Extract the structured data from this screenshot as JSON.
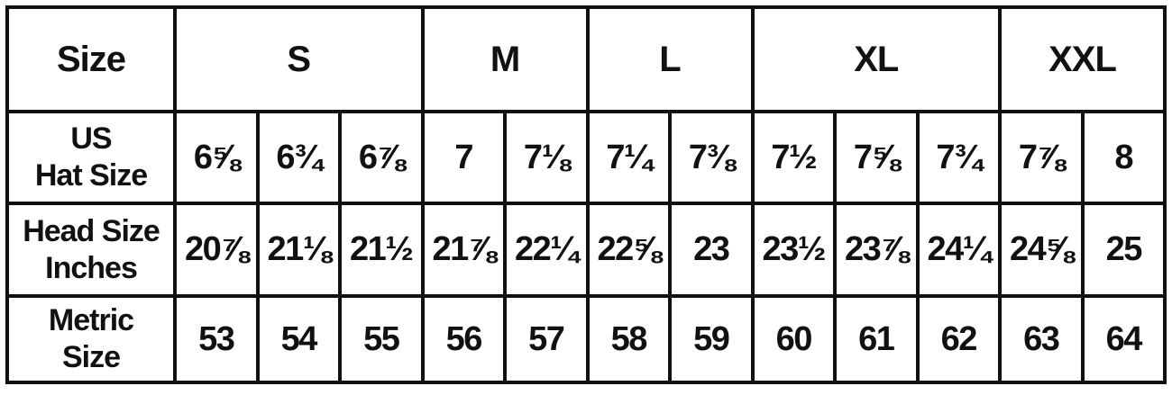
{
  "colors": {
    "ink": "#111111",
    "background": "#ffffff"
  },
  "table": {
    "corner_label": "Size",
    "size_groups": [
      {
        "label": "S",
        "span": 3
      },
      {
        "label": "M",
        "span": 2
      },
      {
        "label": "L",
        "span": 2
      },
      {
        "label": "XL",
        "span": 3
      },
      {
        "label": "XXL",
        "span": 2
      }
    ],
    "rows": [
      {
        "label": "US\nHat Size",
        "values": [
          "6⅝",
          "6¾",
          "6⅞",
          "7",
          "7⅛",
          "7¼",
          "7⅜",
          "7½",
          "7⅝",
          "7¾",
          "7⅞",
          "8"
        ]
      },
      {
        "label": "Head Size\nInches",
        "values": [
          "20⅞",
          "21⅛",
          "21½",
          "21⅞",
          "22¼",
          "22⅝",
          "23",
          "23½",
          "23⅞",
          "24¼",
          "24⅝",
          "25"
        ]
      },
      {
        "label": "Metric\nSize",
        "values": [
          "53",
          "54",
          "55",
          "56",
          "57",
          "58",
          "59",
          "60",
          "61",
          "62",
          "63",
          "64"
        ]
      }
    ]
  },
  "chart_data": {
    "type": "table",
    "row_headers": [
      "Size",
      "US Hat Size",
      "Head Size Inches",
      "Metric Size"
    ],
    "size_categories": [
      {
        "size": "S",
        "us_hat_sizes": [
          "6⅝",
          "6¾",
          "6⅞"
        ],
        "head_size_inches": [
          "20⅞",
          "21⅛",
          "21½"
        ],
        "metric_sizes": [
          53,
          54,
          55
        ]
      },
      {
        "size": "M",
        "us_hat_sizes": [
          "7",
          "7⅛"
        ],
        "head_size_inches": [
          "21⅞",
          "22¼"
        ],
        "metric_sizes": [
          56,
          57
        ]
      },
      {
        "size": "L",
        "us_hat_sizes": [
          "7¼",
          "7⅜"
        ],
        "head_size_inches": [
          "22⅝",
          "23"
        ],
        "metric_sizes": [
          58,
          59
        ]
      },
      {
        "size": "XL",
        "us_hat_sizes": [
          "7½",
          "7⅝",
          "7¾"
        ],
        "head_size_inches": [
          "23½",
          "23⅞",
          "24¼"
        ],
        "metric_sizes": [
          60,
          61,
          62
        ]
      },
      {
        "size": "XXL",
        "us_hat_sizes": [
          "7⅞",
          "8"
        ],
        "head_size_inches": [
          "24⅝",
          "25"
        ],
        "metric_sizes": [
          63,
          64
        ]
      }
    ],
    "layout": {
      "grid": true,
      "border_color": "#111111",
      "background": "#ffffff"
    }
  }
}
